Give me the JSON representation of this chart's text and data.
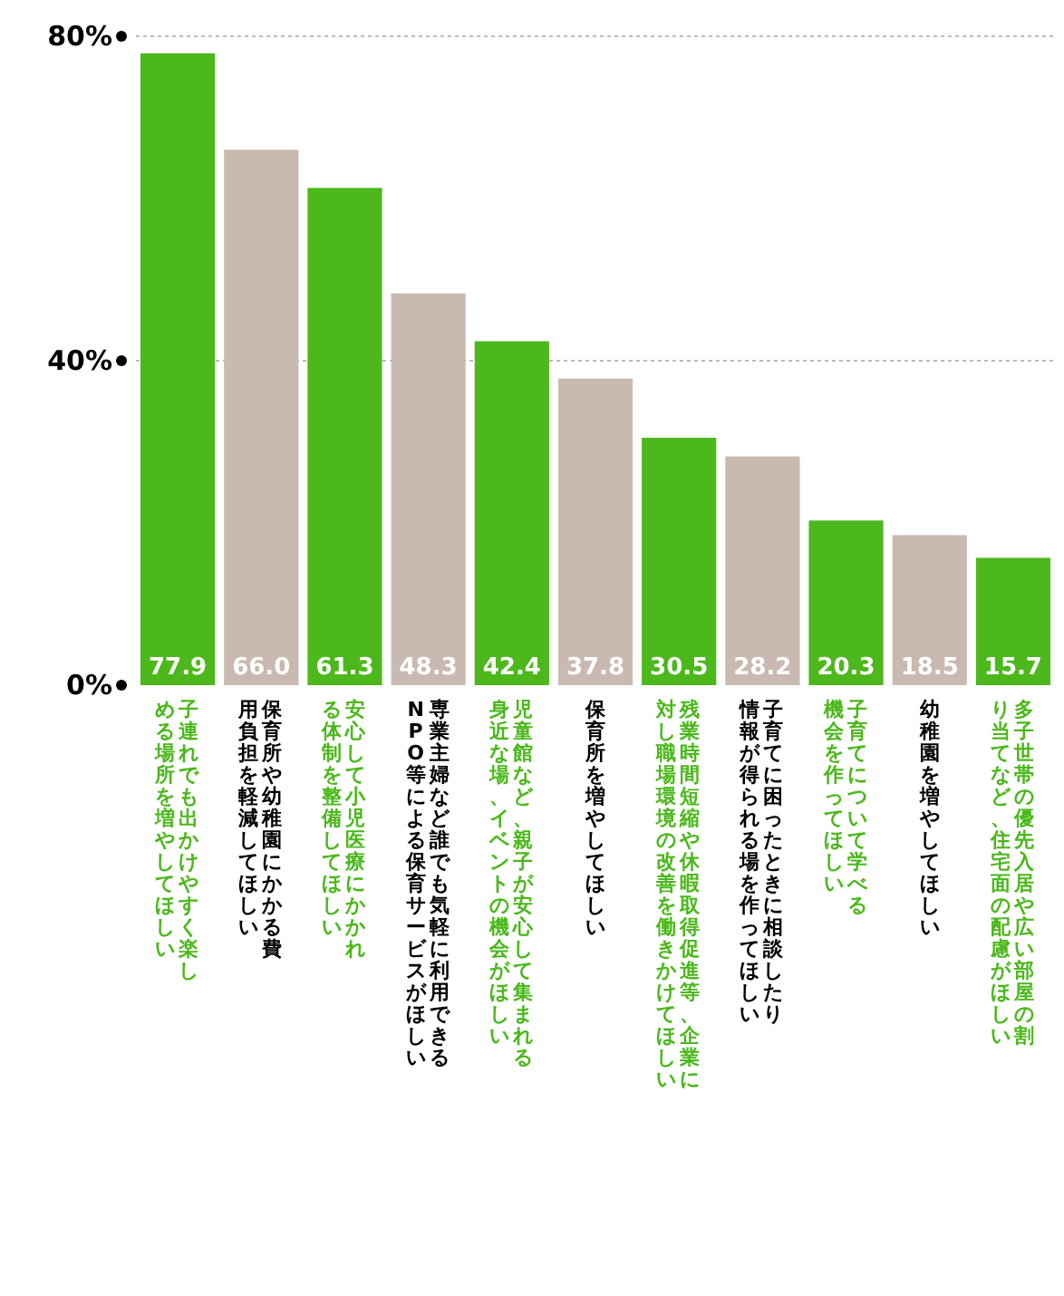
{
  "chart_data": {
    "type": "bar",
    "categories": [
      "子連れでも出かけやすく楽しめる場所を増やしてほしい",
      "保育所や幼稚園にかかる費用負担を軽減してほしい",
      "安心して小児医療にかかれる体制を整備してほしい",
      "専業主婦など誰でも気軽に利用できるNPO等による保育サービスがほしい",
      "児童館など、親子が安心して集まれる身近な場、イベントの機会がほしい",
      "保育所を増やしてほしい",
      "残業時間短縮や休暇取得促進等、企業に対し職場環境の改善を働きかけてほしい",
      "子育てに困ったときに相談したり情報が得られる場を作ってほしい",
      "子育てについて学べる機会を作ってほしい",
      "幼稚園を増やしてほしい",
      "多子世帯の優先入居や広い部屋の割り当てなど、住宅面の配慮がほしい"
    ],
    "values": [
      77.9,
      66.0,
      61.3,
      48.3,
      42.4,
      37.8,
      30.5,
      28.2,
      20.3,
      18.5,
      15.7
    ],
    "value_labels": [
      "77.9",
      "66.0",
      "61.3",
      "48.3",
      "42.4",
      "37.8",
      "30.5",
      "28.2",
      "20.3",
      "18.5",
      "15.7"
    ],
    "colors": [
      "#4cb81c",
      "#c9b9b0",
      "#4cb81c",
      "#c9b9b0",
      "#4cb81c",
      "#c9b9b0",
      "#4cb81c",
      "#c9b9b0",
      "#4cb81c",
      "#c9b9b0",
      "#4cb81c"
    ],
    "ylim": [
      0,
      80
    ],
    "yticks": [
      {
        "value": 0,
        "label": "0%"
      },
      {
        "value": 40,
        "label": "40%"
      },
      {
        "value": 80,
        "label": "80%"
      }
    ],
    "grid": "y"
  }
}
